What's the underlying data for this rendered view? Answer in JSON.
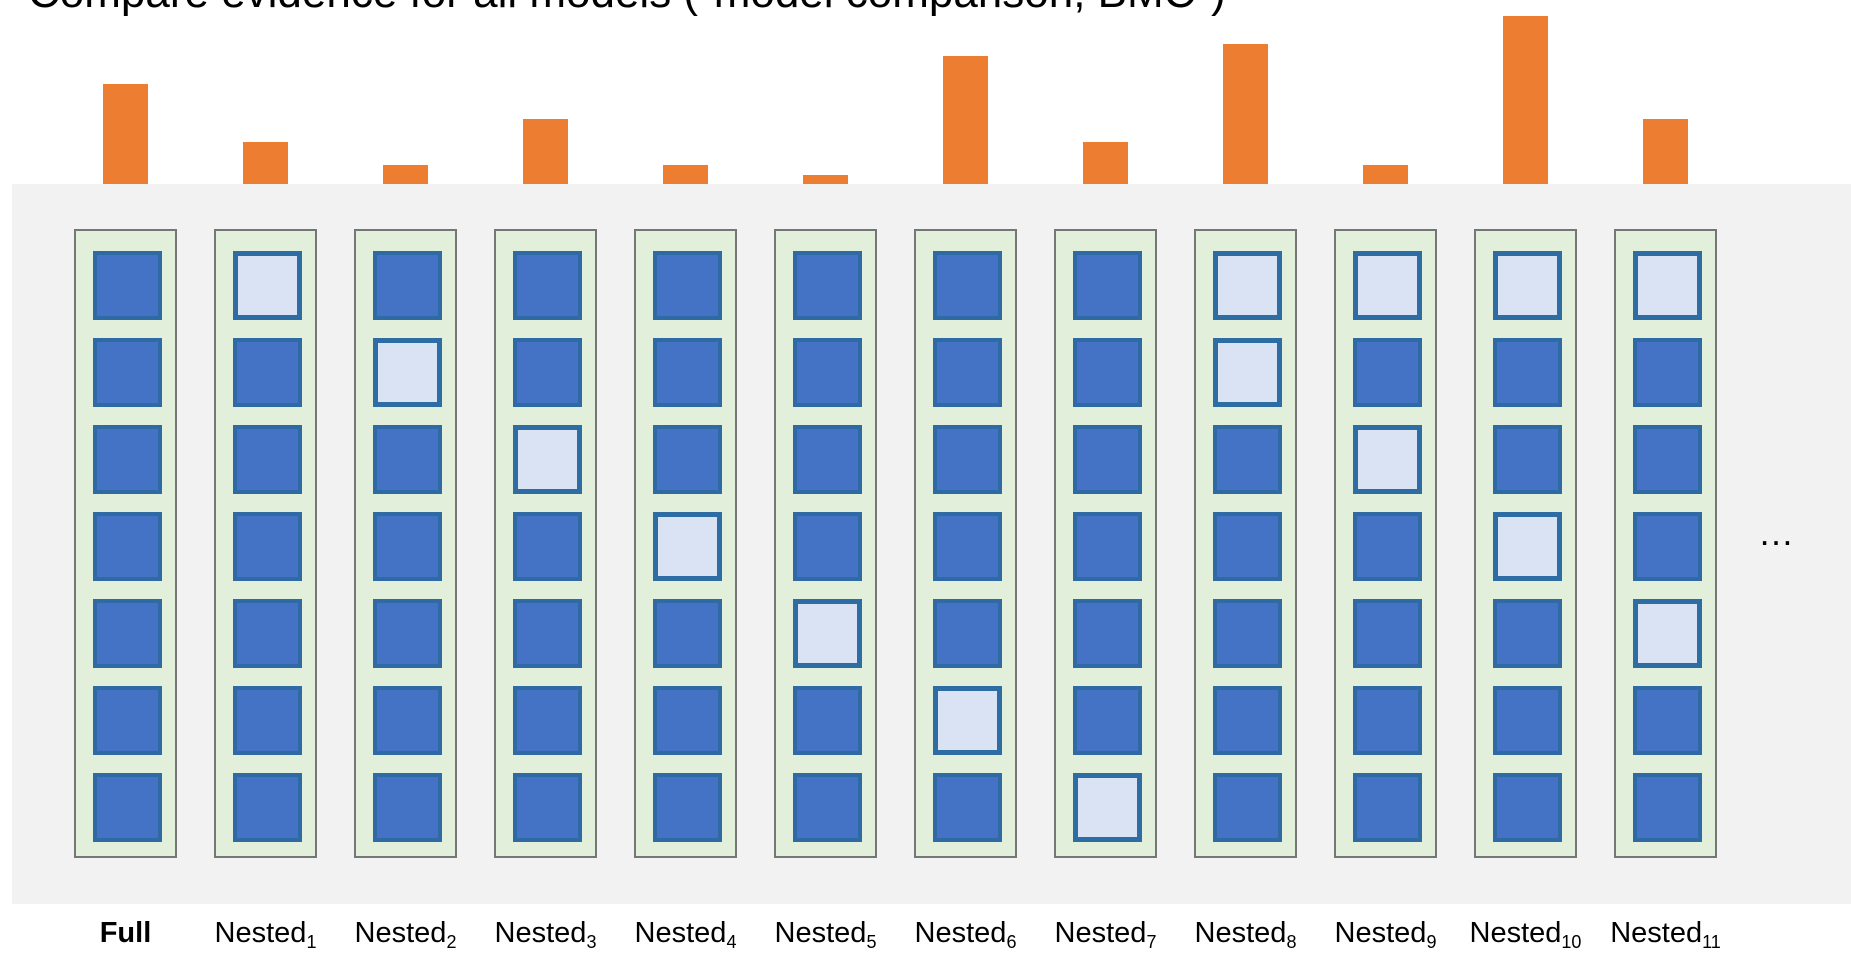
{
  "title": "Compare evidence for all models (\"model comparison, BMC\")",
  "ellipsis": "…",
  "colors": {
    "bar": "#ed7d31",
    "panel": "#f2f2f2",
    "column_fill": "#e2efda",
    "cell_included": "#4472c4",
    "cell_excluded": "#dae3f3"
  },
  "models": [
    {
      "name": "Full",
      "sub": "",
      "bold": true,
      "evidence": 0.57,
      "excluded": []
    },
    {
      "name": "Nested",
      "sub": "1",
      "bold": false,
      "evidence": 0.24,
      "excluded": [
        0
      ]
    },
    {
      "name": "Nested",
      "sub": "2",
      "bold": false,
      "evidence": 0.11,
      "excluded": [
        1
      ]
    },
    {
      "name": "Nested",
      "sub": "3",
      "bold": false,
      "evidence": 0.37,
      "excluded": [
        2
      ]
    },
    {
      "name": "Nested",
      "sub": "4",
      "bold": false,
      "evidence": 0.11,
      "excluded": [
        3
      ]
    },
    {
      "name": "Nested",
      "sub": "5",
      "bold": false,
      "evidence": 0.05,
      "excluded": [
        4
      ]
    },
    {
      "name": "Nested",
      "sub": "6",
      "bold": false,
      "evidence": 0.73,
      "excluded": [
        5
      ]
    },
    {
      "name": "Nested",
      "sub": "7",
      "bold": false,
      "evidence": 0.24,
      "excluded": [
        6
      ]
    },
    {
      "name": "Nested",
      "sub": "8",
      "bold": false,
      "evidence": 0.8,
      "excluded": [
        0,
        1
      ]
    },
    {
      "name": "Nested",
      "sub": "9",
      "bold": false,
      "evidence": 0.11,
      "excluded": [
        0,
        2
      ]
    },
    {
      "name": "Nested",
      "sub": "10",
      "bold": false,
      "evidence": 0.96,
      "excluded": [
        0,
        3
      ]
    },
    {
      "name": "Nested",
      "sub": "11",
      "bold": false,
      "evidence": 0.37,
      "excluded": [
        0,
        4
      ]
    }
  ]
}
